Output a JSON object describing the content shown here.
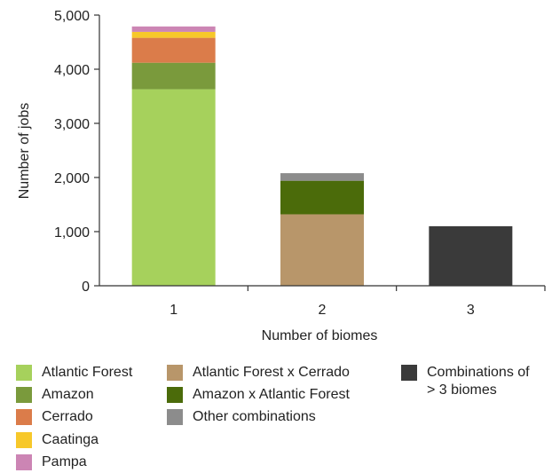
{
  "chart_data": {
    "type": "bar",
    "stacked": true,
    "xlabel": "Number of biomes",
    "ylabel": "Number of jobs",
    "ylim": [
      0,
      5000
    ],
    "yticks": [
      "0",
      "1,000",
      "2,000",
      "3,000",
      "4,000",
      "5,000"
    ],
    "ytick_values": [
      0,
      1000,
      2000,
      3000,
      4000,
      5000
    ],
    "categories": [
      "1",
      "2",
      "3"
    ],
    "series": [
      {
        "name": "Atlantic Forest",
        "color": "#a6d15c",
        "values": [
          3630,
          0,
          0
        ]
      },
      {
        "name": "Amazon",
        "color": "#7a9a3c",
        "values": [
          490,
          0,
          0
        ]
      },
      {
        "name": "Cerrado",
        "color": "#db7c4a",
        "values": [
          460,
          0,
          0
        ]
      },
      {
        "name": "Caatinga",
        "color": "#f7c82a",
        "values": [
          110,
          0,
          0
        ]
      },
      {
        "name": "Pampa",
        "color": "#cc85b4",
        "values": [
          100,
          0,
          0
        ]
      },
      {
        "name": "Atlantic Forest x Cerrado",
        "color": "#b8966a",
        "values": [
          0,
          1320,
          0
        ]
      },
      {
        "name": "Amazon x Atlantic Forest",
        "color": "#4b6b0a",
        "values": [
          0,
          620,
          0
        ]
      },
      {
        "name": "Other combinations",
        "color": "#8c8c8c",
        "values": [
          0,
          140,
          0
        ]
      },
      {
        "name": "Combinations of\n> 3 biomes",
        "color": "#3a3a3a",
        "values": [
          0,
          0,
          1100
        ]
      }
    ],
    "legend_position": "bottom",
    "grid": false
  }
}
